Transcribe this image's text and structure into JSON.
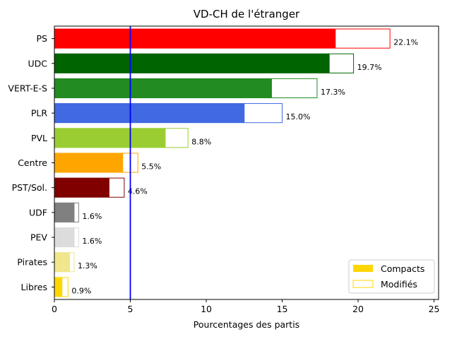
{
  "chart_data": {
    "type": "bar",
    "orientation": "horizontal",
    "title": "VD-CH de l'étranger",
    "xlabel": "Pourcentages des partis",
    "ylabel": "",
    "xlim": [
      0,
      25.3
    ],
    "xticks": [
      "0",
      "5",
      "10",
      "15",
      "20",
      "25"
    ],
    "reference_line": {
      "x": 5,
      "color": "#0000ff"
    },
    "categories": [
      "PS",
      "UDC",
      "VERT-E-S",
      "PLR",
      "PVL",
      "Centre",
      "PST/Sol.",
      "UDF",
      "PEV",
      "Pirates",
      "Libres"
    ],
    "colors": [
      "#ff0000",
      "#006400",
      "#228b22",
      "#4169e1",
      "#9acd32",
      "#ffa500",
      "#800000",
      "#808080",
      "#dcdcdc",
      "#f0e68c",
      "#ffd700"
    ],
    "series": [
      {
        "name": "Compacts",
        "values": [
          18.5,
          18.1,
          14.3,
          12.5,
          7.3,
          4.5,
          3.6,
          1.3,
          1.3,
          1.0,
          0.5
        ]
      },
      {
        "name": "Modifiés",
        "values": [
          3.6,
          1.6,
          3.0,
          2.5,
          1.5,
          1.0,
          1.0,
          0.3,
          0.3,
          0.3,
          0.4
        ]
      }
    ],
    "totals": [
      22.1,
      19.7,
      17.3,
      15.0,
      8.8,
      5.5,
      4.6,
      1.6,
      1.6,
      1.3,
      0.9
    ],
    "data_labels": [
      "22.1%",
      "19.7%",
      "17.3%",
      "15.0%",
      "8.8%",
      "5.5%",
      "4.6%",
      "1.6%",
      "1.6%",
      "1.3%",
      "0.9%"
    ],
    "legend": {
      "placement": "lower-right",
      "entries": [
        {
          "label": "Compacts",
          "color": "#ffd700",
          "style": "filled"
        },
        {
          "label": "Modifiés",
          "color": "#ffd700",
          "style": "outline"
        }
      ]
    },
    "grid": false
  }
}
